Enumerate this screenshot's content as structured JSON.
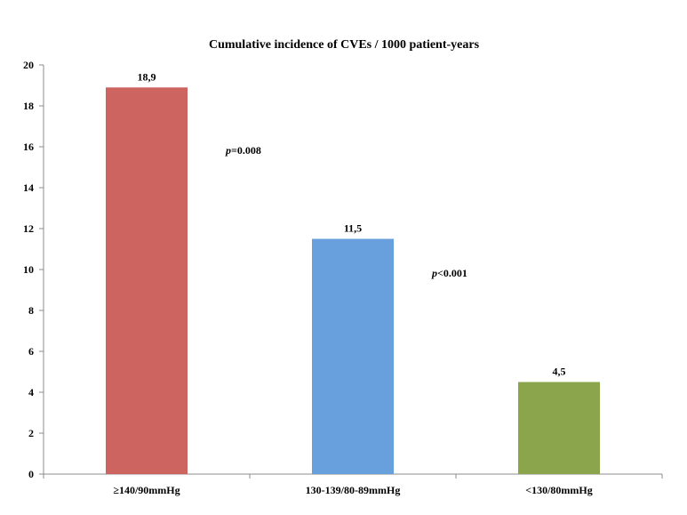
{
  "chart_data": {
    "type": "bar",
    "title": "Cumulative incidence of CVEs / 1000 patient-years",
    "xlabel": "",
    "ylabel": "",
    "categories": [
      "≥140/90mmHg",
      "130-139/80-89mmHg",
      "<130/80mmHg"
    ],
    "values": [
      18.9,
      11.5,
      4.5
    ],
    "value_labels": [
      "18,9",
      "11,5",
      "4,5"
    ],
    "colors": [
      "#cd6460",
      "#68a0de",
      "#8aa54c"
    ],
    "ylim": [
      0,
      20
    ],
    "yticks": [
      0,
      2,
      4,
      6,
      8,
      10,
      12,
      14,
      16,
      18,
      20
    ],
    "grid": false,
    "legend": "none",
    "annotations": [
      {
        "id": "p1",
        "italic": "p",
        "text": "=0.008",
        "between": [
          0,
          1
        ],
        "y": 16
      },
      {
        "id": "p2",
        "italic": "p",
        "text": "<0.001",
        "between": [
          1,
          2
        ],
        "y": 10
      }
    ]
  }
}
